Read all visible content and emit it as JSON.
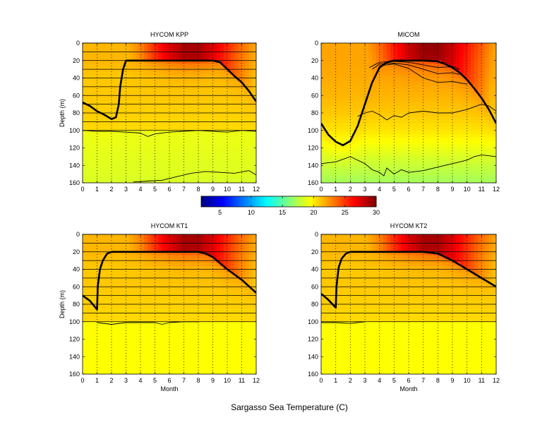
{
  "figure_title": "Sargasso Sea Temperature (C)",
  "colorbar": {
    "min": 2,
    "max": 30,
    "ticks": [
      "5",
      "10",
      "15",
      "20",
      "25",
      "30"
    ],
    "tick_values": [
      5,
      10,
      15,
      20,
      25,
      30
    ],
    "colormap": "jet",
    "colors": [
      "#00008f",
      "#0000ff",
      "#00ffff",
      "#ffff00",
      "#ff0000",
      "#800000"
    ]
  },
  "chart_data": [
    {
      "type": "heatmap",
      "title": "HYCOM KPP",
      "xlabel": "",
      "ylabel": "Depth (m)",
      "xlim": [
        0,
        12
      ],
      "ylim": [
        0,
        160
      ],
      "y_reversed": true,
      "xticks": [
        "0",
        "1",
        "2",
        "3",
        "4",
        "5",
        "6",
        "7",
        "8",
        "9",
        "10",
        "11",
        "12"
      ],
      "yticks": [
        "0",
        "20",
        "40",
        "60",
        "80",
        "100",
        "120",
        "140",
        "160"
      ],
      "layer_interfaces_m": [
        0,
        10,
        20,
        30,
        40,
        50,
        60,
        70,
        80,
        90,
        100
      ],
      "mixed_layer_depth": {
        "x": [
          0,
          0.5,
          1,
          1.5,
          2,
          2.3,
          2.5,
          2.6,
          2.8,
          3,
          4,
          5,
          6,
          7,
          8,
          9,
          9.5,
          10,
          10.5,
          11,
          11.5,
          12
        ],
        "y": [
          68,
          72,
          78,
          82,
          87,
          85,
          70,
          50,
          30,
          20,
          20,
          20,
          20,
          20,
          20,
          20,
          22,
          30,
          38,
          45,
          55,
          67
        ]
      },
      "lower_isotherm_depth": {
        "x": [
          0,
          1,
          2,
          3,
          4,
          4.5,
          5,
          6,
          7,
          8,
          9,
          10,
          11,
          12
        ],
        "y": [
          100,
          101,
          101,
          102,
          103,
          107,
          104,
          102,
          101,
          100,
          101,
          102,
          100,
          101
        ]
      },
      "deep_isotherm_depth": {
        "x": [
          3.5,
          4.5,
          5.5,
          6.5,
          7.5,
          8.5,
          9.5,
          10.5,
          11.5,
          12
        ],
        "y": [
          159,
          158,
          157,
          153,
          149,
          147,
          148,
          149,
          146,
          151
        ]
      },
      "surface_temperature": {
        "month": [
          0,
          1,
          2,
          3,
          4,
          5,
          6,
          7,
          8,
          9,
          10,
          11,
          12
        ],
        "value": [
          21.5,
          21,
          21,
          21.5,
          23,
          25.5,
          27.5,
          29,
          29,
          27.5,
          25.5,
          23.5,
          22
        ]
      },
      "temperature_profile": {
        "depth": [
          0,
          20,
          40,
          60,
          100,
          101,
          160
        ],
        "value_below_mixed_layer": [
          21.5,
          21.5,
          21,
          21,
          20.5,
          19,
          18.5
        ]
      }
    },
    {
      "type": "heatmap",
      "title": "MICOM",
      "xlabel": "",
      "ylabel": "",
      "xlim": [
        0,
        12
      ],
      "ylim": [
        0,
        160
      ],
      "y_reversed": true,
      "xticks": [
        "0",
        "1",
        "2",
        "3",
        "4",
        "5",
        "6",
        "7",
        "8",
        "9",
        "10",
        "11",
        "12"
      ],
      "yticks": [
        "0",
        "20",
        "40",
        "60",
        "80",
        "100",
        "120",
        "140",
        "160"
      ],
      "layer_interfaces_m": [],
      "mixed_layer_depth": {
        "x": [
          0,
          0.5,
          1,
          1.5,
          2,
          2.5,
          3,
          3.5,
          4,
          4.5,
          5,
          6,
          7,
          8,
          8.5,
          9,
          9.5,
          10,
          10.5,
          11,
          11.5,
          12
        ],
        "y": [
          92,
          105,
          113,
          117,
          112,
          95,
          70,
          45,
          28,
          22,
          20,
          20,
          20,
          21,
          24,
          28,
          34,
          42,
          52,
          63,
          76,
          92
        ]
      },
      "upper_isotherm_depths": [
        {
          "x": [
            3.3,
            4,
            5,
            6,
            7,
            8,
            9,
            9.5
          ],
          "y": [
            28,
            22,
            21,
            22,
            25,
            28,
            27,
            30
          ]
        },
        {
          "x": [
            3.5,
            4,
            5,
            6,
            7,
            8,
            9,
            9.5
          ],
          "y": [
            30,
            24,
            23,
            25,
            30,
            35,
            34,
            36
          ]
        },
        {
          "x": [
            4,
            5,
            6,
            7,
            8,
            9,
            10
          ],
          "y": [
            26,
            24,
            29,
            40,
            45,
            44,
            47
          ]
        }
      ],
      "lower_isotherm_depth": {
        "x": [
          2.5,
          3,
          3.5,
          4,
          4.5,
          5,
          5.5,
          6,
          7,
          8,
          9,
          10,
          10.5,
          11,
          11.5,
          12
        ],
        "y": [
          84,
          80,
          78,
          82,
          88,
          83,
          85,
          80,
          78,
          80,
          80,
          76,
          73,
          70,
          72,
          78
        ]
      },
      "deep_isotherm_depth": {
        "x": [
          0,
          1,
          2,
          3,
          3.5,
          4,
          4.3,
          4.5,
          5,
          5.5,
          6,
          7,
          8,
          9,
          10,
          10.5,
          11,
          12
        ],
        "y": [
          138,
          136,
          130,
          138,
          145,
          148,
          152,
          143,
          150,
          145,
          148,
          146,
          142,
          138,
          134,
          130,
          128,
          130
        ]
      },
      "surface_temperature": {
        "month": [
          0,
          1,
          2,
          3,
          4,
          5,
          6,
          7,
          8,
          9,
          10,
          11,
          12
        ],
        "value": [
          22,
          21.5,
          21.5,
          22,
          23.5,
          26,
          28,
          29.5,
          29.5,
          28,
          26,
          24,
          22
        ]
      },
      "temperature_profile": {
        "depth": [
          0,
          20,
          40,
          60,
          80,
          100,
          130,
          160
        ],
        "value_below_mixed_layer": [
          22,
          22,
          21.8,
          21.5,
          21,
          20.2,
          18.5,
          17
        ]
      }
    },
    {
      "type": "heatmap",
      "title": "HYCOM KT1",
      "xlabel": "Month",
      "ylabel": "Depth (m)",
      "xlim": [
        0,
        12
      ],
      "ylim": [
        0,
        160
      ],
      "y_reversed": true,
      "xticks": [
        "0",
        "1",
        "2",
        "3",
        "4",
        "5",
        "6",
        "7",
        "8",
        "9",
        "10",
        "11",
        "12"
      ],
      "yticks": [
        "0",
        "20",
        "40",
        "60",
        "80",
        "100",
        "120",
        "140",
        "160"
      ],
      "layer_interfaces_m": [
        0,
        10,
        20,
        30,
        40,
        50,
        60,
        70,
        80,
        90,
        100
      ],
      "mixed_layer_depth": {
        "x": [
          0,
          0.5,
          1,
          1.05,
          1.2,
          1.4,
          1.7,
          2,
          3,
          4,
          5,
          6,
          7,
          8,
          8.5,
          9,
          10,
          11,
          12
        ],
        "y": [
          70,
          76,
          86,
          60,
          40,
          30,
          22,
          20,
          20,
          20,
          20,
          20,
          20,
          20,
          22,
          26,
          40,
          52,
          67
        ]
      },
      "lower_isotherm_depth": {
        "x": [
          1,
          2,
          3,
          4,
          5,
          5.5,
          6,
          7,
          8
        ],
        "y": [
          101,
          103,
          101,
          101,
          101,
          103,
          101,
          100,
          100
        ]
      },
      "surface_temperature": {
        "month": [
          0,
          1,
          2,
          3,
          4,
          5,
          6,
          7,
          8,
          9,
          10,
          11,
          12
        ],
        "value": [
          21.5,
          21,
          21,
          21.5,
          23,
          25.5,
          27.5,
          29,
          29,
          27.5,
          25.5,
          23.5,
          22
        ]
      },
      "temperature_profile": {
        "depth": [
          0,
          20,
          40,
          60,
          100,
          101,
          160
        ],
        "value_below_mixed_layer": [
          21.5,
          21.5,
          21,
          21,
          20.5,
          19.5,
          19.5
        ]
      }
    },
    {
      "type": "heatmap",
      "title": "HYCOM KT2",
      "xlabel": "Month",
      "ylabel": "",
      "xlim": [
        0,
        12
      ],
      "ylim": [
        0,
        160
      ],
      "y_reversed": true,
      "xticks": [
        "0",
        "1",
        "2",
        "3",
        "4",
        "5",
        "6",
        "7",
        "8",
        "9",
        "10",
        "11",
        "12"
      ],
      "yticks": [
        "0",
        "20",
        "40",
        "60",
        "80",
        "100",
        "120",
        "140",
        "160"
      ],
      "layer_interfaces_m": [
        0,
        10,
        20,
        30,
        40,
        50,
        60,
        70,
        80,
        90,
        100
      ],
      "mixed_layer_depth": {
        "x": [
          0,
          0.5,
          1,
          1.05,
          1.2,
          1.4,
          1.7,
          2,
          3,
          4,
          5,
          6,
          7,
          8,
          9,
          10,
          11,
          12
        ],
        "y": [
          68,
          75,
          84,
          60,
          38,
          28,
          22,
          20,
          20,
          20,
          20,
          20,
          20,
          22,
          30,
          40,
          50,
          60
        ]
      },
      "lower_isotherm_depth": {
        "x": [
          0,
          1,
          2,
          2.5,
          3
        ],
        "y": [
          101,
          101,
          102,
          101,
          100
        ]
      },
      "surface_temperature": {
        "month": [
          0,
          1,
          2,
          3,
          4,
          5,
          6,
          7,
          8,
          9,
          10,
          11,
          12
        ],
        "value": [
          21.5,
          21,
          21,
          21.5,
          23,
          25.5,
          27.5,
          29,
          29,
          27.5,
          25.5,
          23.5,
          22
        ]
      },
      "temperature_profile": {
        "depth": [
          0,
          20,
          40,
          60,
          100,
          101,
          160
        ],
        "value_below_mixed_layer": [
          21.5,
          21.5,
          21,
          21,
          20.5,
          19.5,
          19.5
        ]
      }
    }
  ]
}
